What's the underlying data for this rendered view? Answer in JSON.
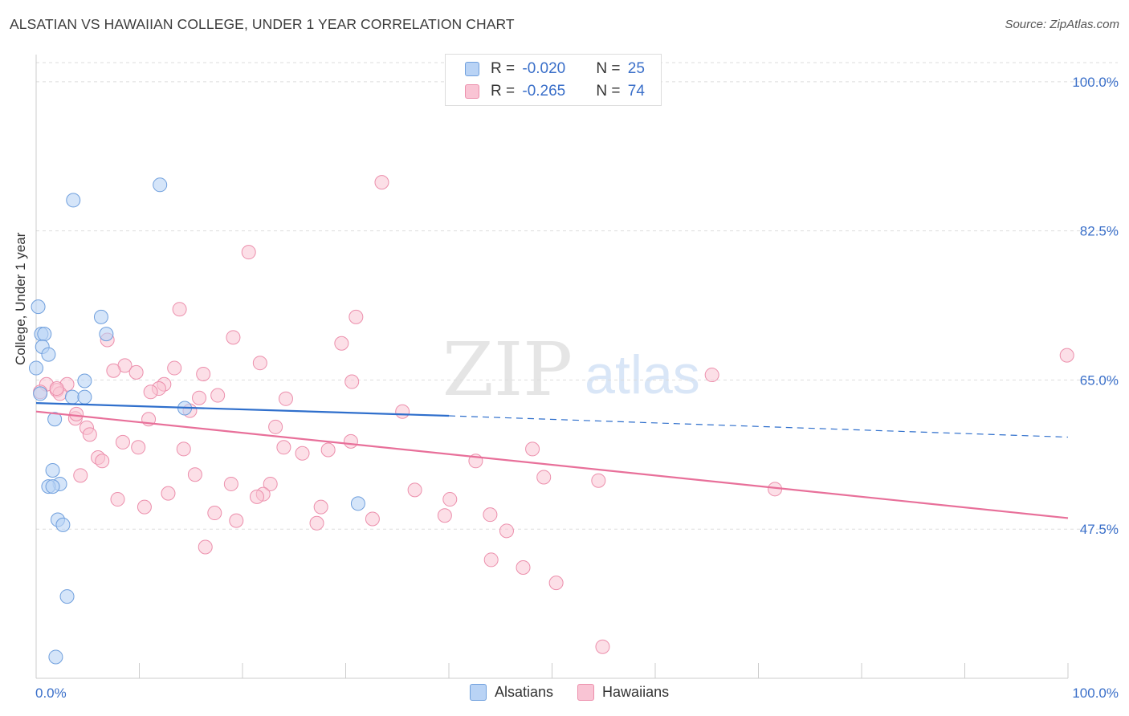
{
  "header": {
    "title": "ALSATIAN VS HAWAIIAN COLLEGE, UNDER 1 YEAR CORRELATION CHART",
    "source": "Source: ZipAtlas.com"
  },
  "legend": {
    "rows": [
      {
        "r_label": "R = ",
        "r_value": "-0.020",
        "n_label": "N = ",
        "n_value": "25"
      },
      {
        "r_label": "R = ",
        "r_value": "-0.265",
        "n_label": "N = ",
        "n_value": "74"
      }
    ],
    "bottom": [
      "Alsatians",
      "Hawaiians"
    ]
  },
  "watermark": {
    "zip": "ZIP",
    "atlas": "atlas"
  },
  "colors": {
    "alsatians_fill": "#b9d3f5",
    "alsatians_stroke": "#6f9fdd",
    "alsatians_line": "#2f6fcc",
    "hawaiians_fill": "#f9c4d4",
    "hawaiians_stroke": "#ec8fac",
    "hawaiians_line": "#e8709a",
    "tick_label": "#3a6fc9",
    "grid": "#dddddd"
  },
  "chart_data": {
    "type": "scatter",
    "title": "ALSATIAN VS HAWAIIAN COLLEGE, UNDER 1 YEAR CORRELATION CHART",
    "ylabel": "College, Under 1 year",
    "xlabel": "",
    "xlim": [
      0,
      100
    ],
    "ylim": [
      30,
      103
    ],
    "x_tick_labels": [
      "0.0%",
      "100.0%"
    ],
    "y_ticks": [
      47.5,
      65.0,
      82.5,
      100.0
    ],
    "y_tick_labels": [
      "47.5%",
      "65.0%",
      "82.5%",
      "100.0%"
    ],
    "grid": true,
    "legend_position": "top-center",
    "series": [
      {
        "name": "Alsatians",
        "r": -0.02,
        "n": 25,
        "trend": {
          "x": [
            0,
            40
          ],
          "y": [
            62.3,
            60.8
          ],
          "dashed_to": [
            100,
            58.3
          ]
        },
        "points": [
          [
            3.6,
            86.1
          ],
          [
            12.0,
            87.9
          ],
          [
            0.2,
            73.6
          ],
          [
            6.3,
            72.4
          ],
          [
            0.5,
            70.4
          ],
          [
            0.8,
            70.4
          ],
          [
            6.8,
            70.4
          ],
          [
            0.6,
            68.9
          ],
          [
            1.2,
            68.0
          ],
          [
            0.0,
            66.4
          ],
          [
            4.7,
            64.9
          ],
          [
            3.5,
            63.0
          ],
          [
            4.7,
            63.0
          ],
          [
            14.4,
            61.7
          ],
          [
            1.8,
            60.4
          ],
          [
            1.6,
            54.4
          ],
          [
            2.3,
            52.8
          ],
          [
            1.2,
            52.5
          ],
          [
            1.6,
            52.5
          ],
          [
            2.1,
            48.6
          ],
          [
            2.6,
            48.0
          ],
          [
            31.2,
            50.5
          ],
          [
            3.0,
            39.6
          ],
          [
            1.9,
            32.5
          ],
          [
            0.4,
            63.4
          ]
        ]
      },
      {
        "name": "Hawaiians",
        "r": -0.265,
        "n": 74,
        "trend": {
          "x": [
            0,
            100
          ],
          "y": [
            61.3,
            48.8
          ]
        },
        "points": [
          [
            33.5,
            88.2
          ],
          [
            20.6,
            80.0
          ],
          [
            13.9,
            73.3
          ],
          [
            31.0,
            72.4
          ],
          [
            19.1,
            70.0
          ],
          [
            6.9,
            69.7
          ],
          [
            29.6,
            69.3
          ],
          [
            99.9,
            67.9
          ],
          [
            21.7,
            67.0
          ],
          [
            8.6,
            66.7
          ],
          [
            13.4,
            66.4
          ],
          [
            7.5,
            66.1
          ],
          [
            9.7,
            65.9
          ],
          [
            16.2,
            65.7
          ],
          [
            65.5,
            65.6
          ],
          [
            1.0,
            64.5
          ],
          [
            3.0,
            64.5
          ],
          [
            12.4,
            64.5
          ],
          [
            30.6,
            64.8
          ],
          [
            11.9,
            64.0
          ],
          [
            2.0,
            63.8
          ],
          [
            11.1,
            63.6
          ],
          [
            0.4,
            63.6
          ],
          [
            2.3,
            63.4
          ],
          [
            17.6,
            63.2
          ],
          [
            15.8,
            62.9
          ],
          [
            24.2,
            62.8
          ],
          [
            14.9,
            61.4
          ],
          [
            35.5,
            61.3
          ],
          [
            3.8,
            60.5
          ],
          [
            10.9,
            60.4
          ],
          [
            4.9,
            59.4
          ],
          [
            23.2,
            59.5
          ],
          [
            5.2,
            58.6
          ],
          [
            8.4,
            57.7
          ],
          [
            30.5,
            57.8
          ],
          [
            9.9,
            57.1
          ],
          [
            14.3,
            56.9
          ],
          [
            24.0,
            57.1
          ],
          [
            28.3,
            56.8
          ],
          [
            48.1,
            56.9
          ],
          [
            25.8,
            56.4
          ],
          [
            6.0,
            55.9
          ],
          [
            6.4,
            55.5
          ],
          [
            42.6,
            55.5
          ],
          [
            4.3,
            53.8
          ],
          [
            15.4,
            53.9
          ],
          [
            49.2,
            53.6
          ],
          [
            54.5,
            53.2
          ],
          [
            18.9,
            52.8
          ],
          [
            22.7,
            52.8
          ],
          [
            36.7,
            52.1
          ],
          [
            12.8,
            51.7
          ],
          [
            22.0,
            51.6
          ],
          [
            21.4,
            51.3
          ],
          [
            7.9,
            51.0
          ],
          [
            40.1,
            51.0
          ],
          [
            71.6,
            52.2
          ],
          [
            10.5,
            50.1
          ],
          [
            27.6,
            50.1
          ],
          [
            17.3,
            49.4
          ],
          [
            44.0,
            49.2
          ],
          [
            39.6,
            49.1
          ],
          [
            19.4,
            48.5
          ],
          [
            32.6,
            48.7
          ],
          [
            27.2,
            48.2
          ],
          [
            45.6,
            47.3
          ],
          [
            16.4,
            45.4
          ],
          [
            44.1,
            43.9
          ],
          [
            47.2,
            43.0
          ],
          [
            50.4,
            41.2
          ],
          [
            54.9,
            33.7
          ],
          [
            2.0,
            64.0
          ],
          [
            3.9,
            61.0
          ]
        ]
      }
    ]
  }
}
